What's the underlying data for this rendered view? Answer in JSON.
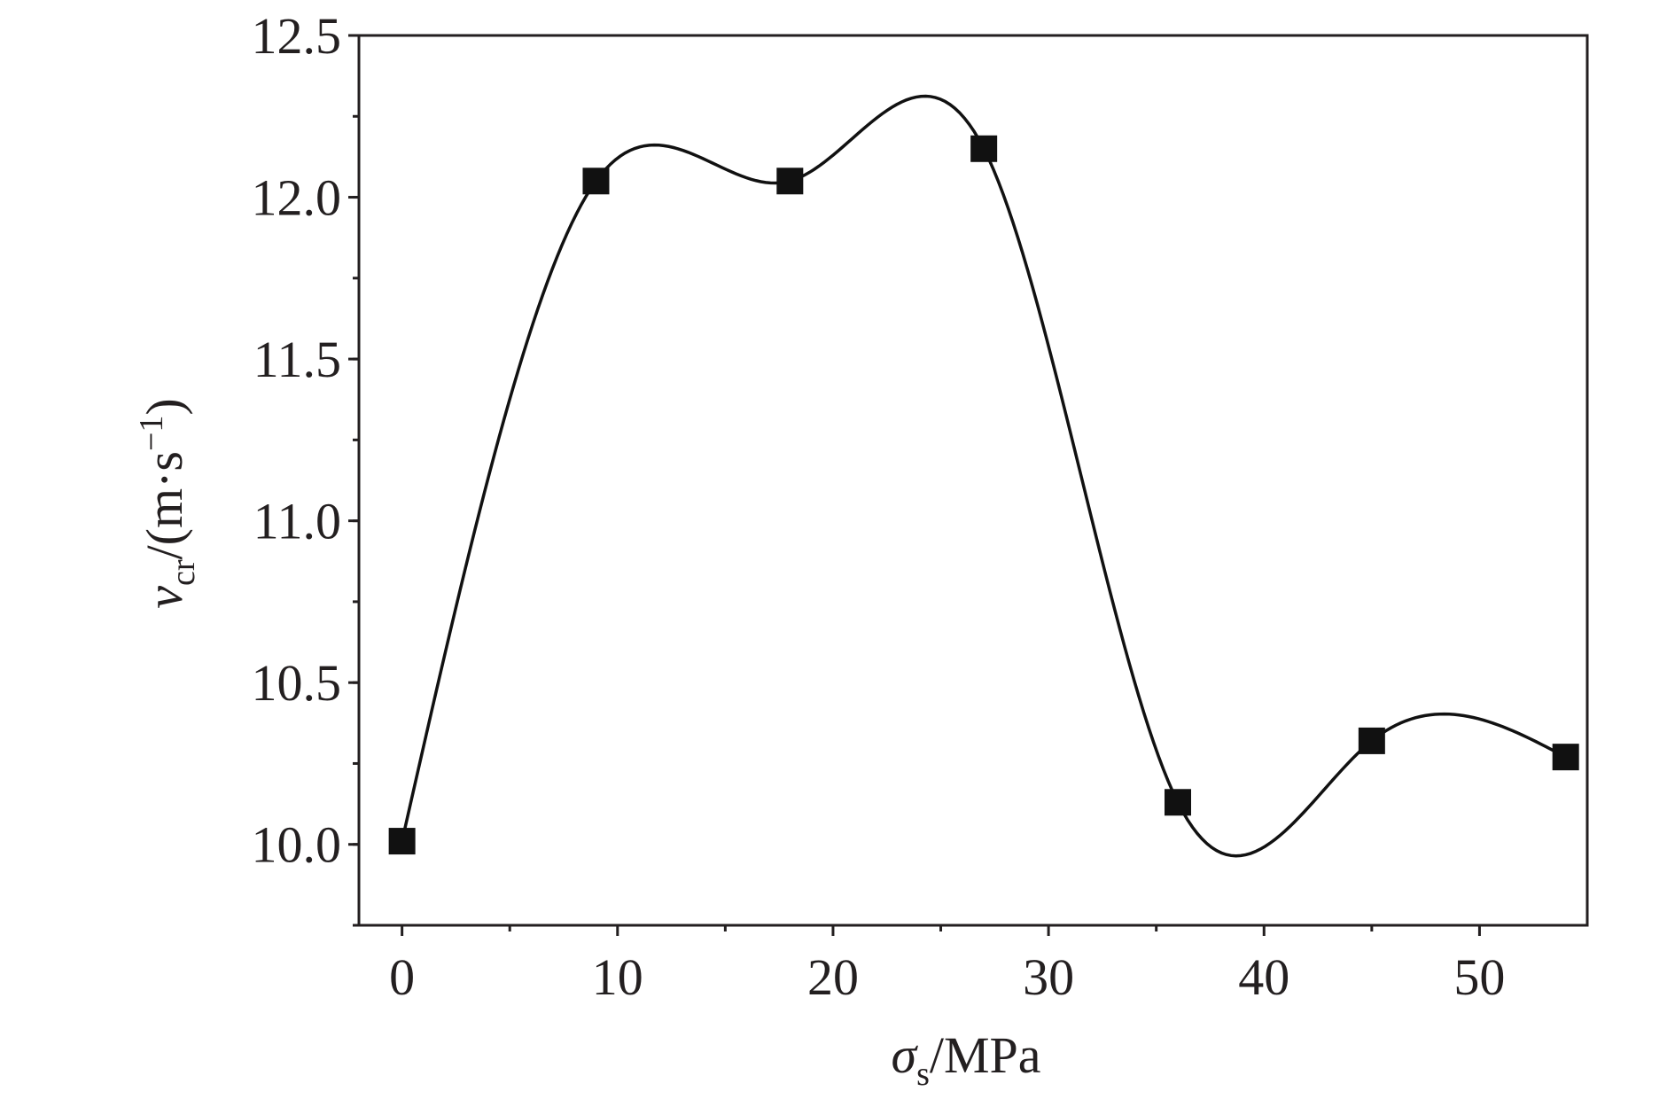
{
  "chart_data": {
    "type": "line",
    "title": "",
    "xlabel": {
      "symbol": "σ",
      "subscript": "s",
      "unit": "/MPa"
    },
    "ylabel": {
      "symbol": "v",
      "subscript": "cr",
      "unit_open": "/(m·s",
      "unit_exp": "−1",
      "unit_close": ")"
    },
    "xlim": [
      -2,
      55
    ],
    "ylim": [
      9.75,
      12.5
    ],
    "xticks": [
      0,
      10,
      20,
      30,
      40,
      50
    ],
    "xtick_labels": [
      "0",
      "10",
      "20",
      "30",
      "40",
      "50"
    ],
    "yticks": [
      10.0,
      10.5,
      11.0,
      11.5,
      12.0,
      12.5
    ],
    "ytick_labels": [
      "10.0",
      "10.5",
      "11.0",
      "11.5",
      "12.0",
      "12.5"
    ],
    "grid": false,
    "legend": false,
    "marker": "square",
    "color": "#111111",
    "series": [
      {
        "x": [
          0,
          9,
          18,
          27,
          36,
          45,
          54
        ],
        "values": [
          10.01,
          12.05,
          12.05,
          12.15,
          10.13,
          10.32,
          10.27
        ]
      }
    ]
  }
}
